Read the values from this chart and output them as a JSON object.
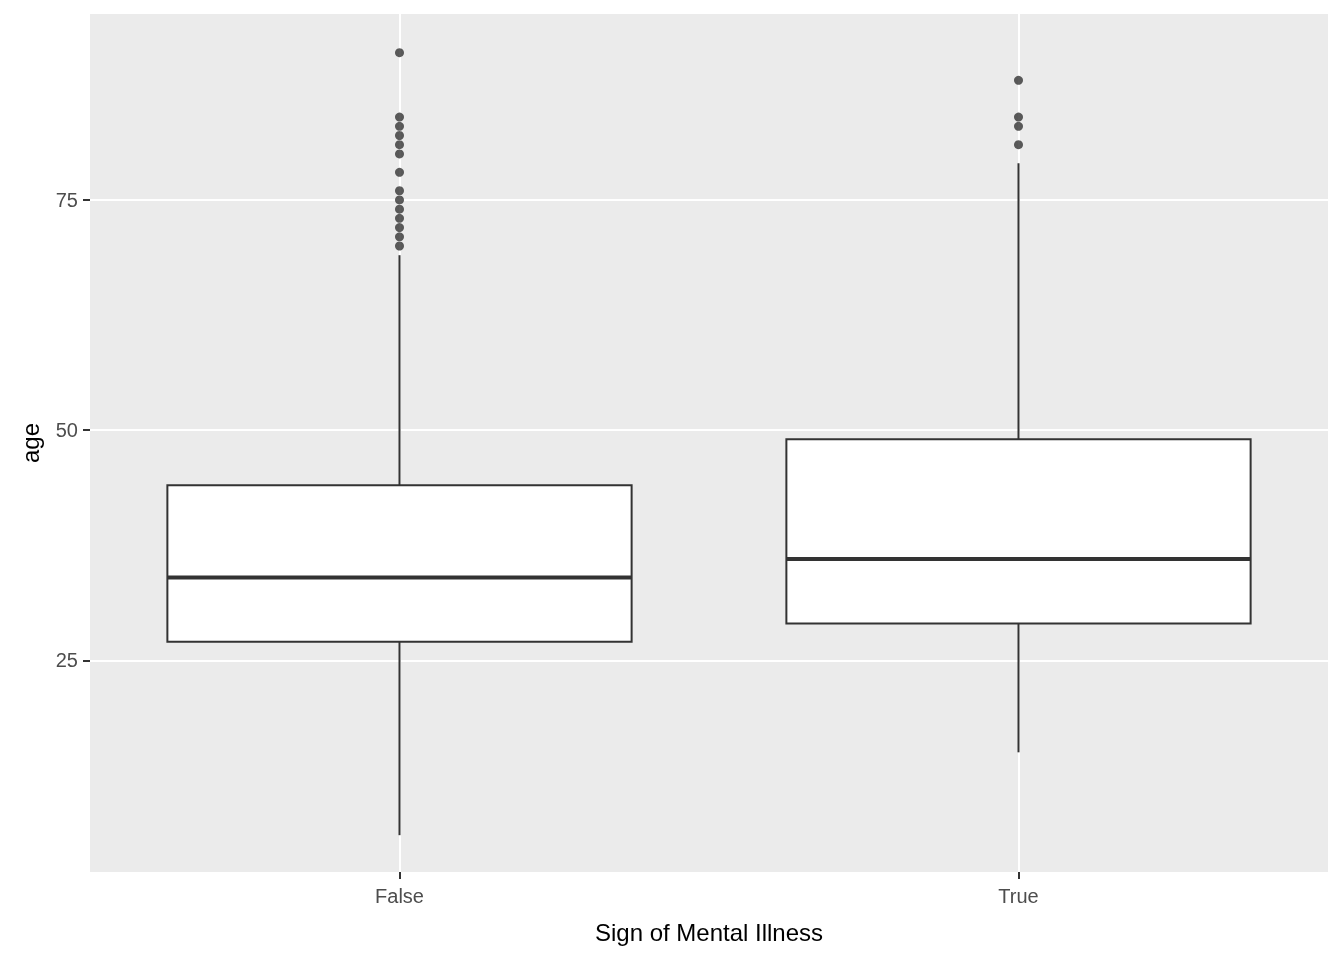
{
  "chart_data": {
    "type": "box",
    "xlabel": "Sign of Mental Illness",
    "ylabel": "age",
    "categories": [
      "False",
      "True"
    ],
    "boxes": [
      {
        "low": 6,
        "q1": 27,
        "median": 34,
        "q3": 44,
        "high": 69,
        "outliers": [
          70,
          71,
          72,
          73,
          74,
          75,
          76,
          78,
          80,
          81,
          82,
          83,
          84,
          91
        ]
      },
      {
        "low": 15,
        "q1": 29,
        "median": 36,
        "q3": 49,
        "high": 79,
        "outliers": [
          81,
          83,
          84,
          88
        ]
      }
    ],
    "ylim": [
      2,
      95.2
    ],
    "yticks": [
      25,
      50,
      75
    ],
    "grid": true
  }
}
